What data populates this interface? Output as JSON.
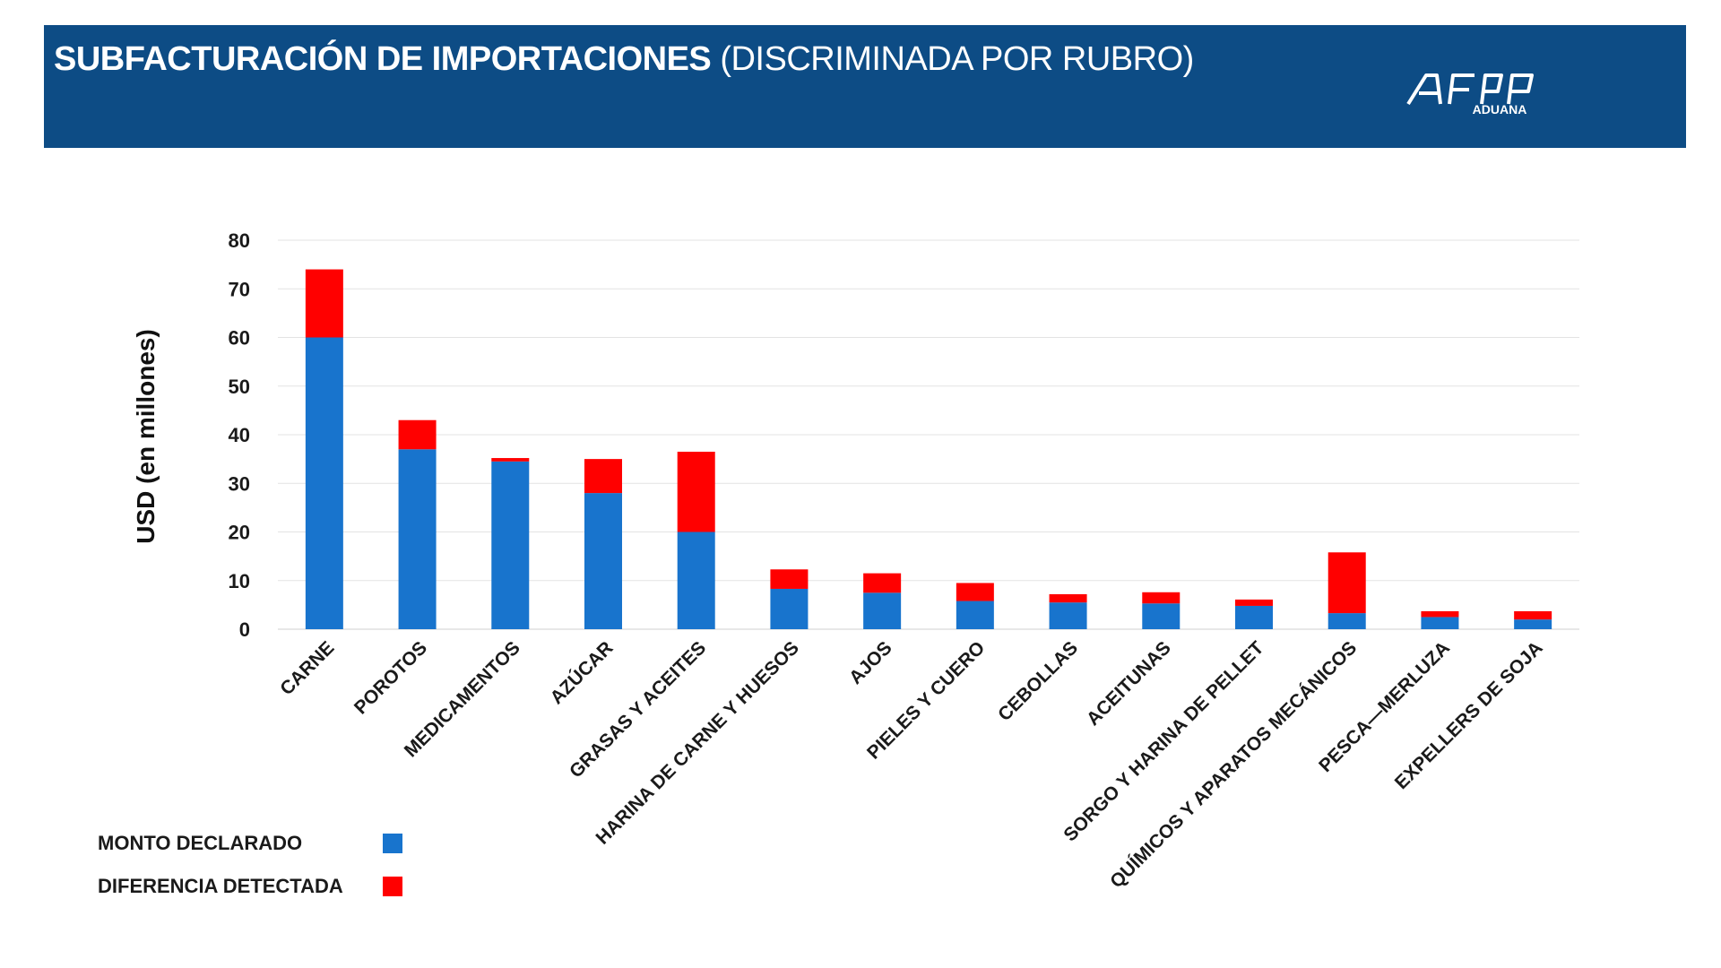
{
  "header": {
    "title_bold": "SUBFACTURACIÓN DE IMPORTACIONES",
    "title_light": "(DISCRIMINADA POR RUBRO)",
    "logo_subtext": "ADUANA",
    "background_color": "#0d4c85"
  },
  "chart_data": {
    "type": "bar",
    "stacked": true,
    "ylabel": "USD (en millones)",
    "xlabel": "",
    "ylim": [
      0,
      80
    ],
    "yticks": [
      0,
      10,
      20,
      30,
      40,
      50,
      60,
      70,
      80
    ],
    "grid": true,
    "legend_position": "bottom-left",
    "categories": [
      "CARNE",
      "POROTOS",
      "MEDICAMENTOS",
      "AZÚCAR",
      "GRASAS Y ACEITES",
      "HARINA DE CARNE Y HUESOS",
      "AJOS",
      "PIELES Y CUERO",
      "CEBOLLAS",
      "ACEITUNAS",
      "SORGO Y HARINA DE PELLET",
      "QUÍMICOS Y APARATOS MECÁNICOS",
      "PESCA—MERLUZA",
      "EXPELLERS DE SOJA"
    ],
    "series": [
      {
        "name": "MONTO DECLARADO",
        "color": "#1874cd",
        "values": [
          60,
          37,
          34.5,
          28,
          20,
          8.3,
          7.5,
          5.8,
          5.5,
          5.3,
          4.8,
          3.3,
          2.5,
          2
        ]
      },
      {
        "name": "DIFERENCIA DETECTADA",
        "color": "#ff0000",
        "values": [
          14,
          6,
          0.7,
          7,
          16.5,
          4,
          4,
          3.7,
          1.7,
          2.3,
          1.3,
          12.5,
          1.2,
          1.7
        ]
      }
    ]
  }
}
